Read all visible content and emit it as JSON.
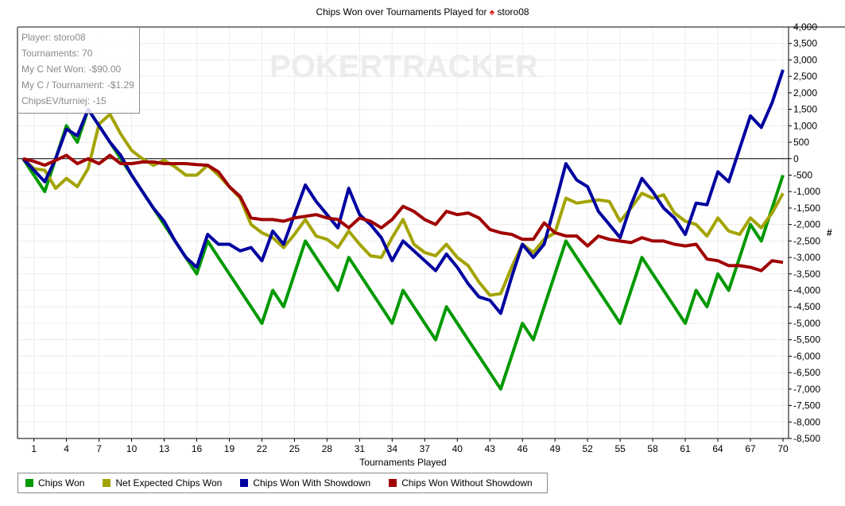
{
  "title": {
    "prefix": "Chips Won over Tournaments Played for",
    "player": "storo08",
    "icon": "spade-icon"
  },
  "watermark": "POKERTRACKER",
  "info_box": {
    "lines": [
      "Player: storo08",
      "Tournaments: 70",
      "My C Net Won: -$90.00",
      "My C / Tournament: -$1.29",
      "ChipsEV/turniej: -15"
    ]
  },
  "chart_data": {
    "type": "line",
    "title": "Chips Won over Tournaments Played for storo08",
    "xlabel": "Tournaments Played",
    "ylabel": "#",
    "xlim": [
      0,
      70
    ],
    "ylim": [
      -8500,
      4000
    ],
    "x_ticks": [
      1,
      4,
      7,
      10,
      13,
      16,
      19,
      22,
      25,
      28,
      31,
      34,
      37,
      40,
      43,
      46,
      49,
      52,
      55,
      58,
      61,
      64,
      67,
      70
    ],
    "y_ticks": [
      4000,
      3500,
      3000,
      2500,
      2000,
      1500,
      1000,
      500,
      0,
      -500,
      -1000,
      -1500,
      -2000,
      -2500,
      -3000,
      -3500,
      -4000,
      -4500,
      -5000,
      -5500,
      -6000,
      -6500,
      -7000,
      -7500,
      -8000,
      -8500
    ],
    "y_tick_labels": [
      "4,000",
      "3,500",
      "3,000",
      "2,500",
      "2,000",
      "1,500",
      "1,000",
      "500",
      "0",
      "-500",
      "-1,000",
      "-1,500",
      "-2,000",
      "-2,500",
      "-3,000",
      "-3,500",
      "-4,000",
      "-4,500",
      "-5,000",
      "-5,500",
      "-6,000",
      "-6,500",
      "-7,000",
      "-7,500",
      "-8,000",
      "-8,500"
    ],
    "grid": true,
    "legend_position": "bottom-left",
    "series": [
      {
        "name": "Chips Won",
        "color": "#009900",
        "values": [
          0,
          -500,
          -1000,
          0,
          1000,
          500,
          1500,
          1000,
          500,
          0,
          -500,
          -1000,
          -1500,
          -2000,
          -2500,
          -3000,
          -3500,
          -2500,
          -3000,
          -3500,
          -4000,
          -4500,
          -5000,
          -4000,
          -4500,
          -3500,
          -2500,
          -3000,
          -3500,
          -4000,
          -3000,
          -3500,
          -4000,
          -4500,
          -5000,
          -4000,
          -4500,
          -5000,
          -5500,
          -4500,
          -5000,
          -5500,
          -6000,
          -6500,
          -7000,
          -6000,
          -5000,
          -5500,
          -4500,
          -3500,
          -2500,
          -3000,
          -3500,
          -4000,
          -4500,
          -5000,
          -4000,
          -3000,
          -3500,
          -4000,
          -4500,
          -5000,
          -4000,
          -4500,
          -3500,
          -4000,
          -3000,
          -2000,
          -2500,
          -1500,
          -500
        ]
      },
      {
        "name": "Net Expected Chips Won",
        "color": "#a3a300",
        "values": [
          0,
          -300,
          -350,
          -900,
          -600,
          -850,
          -300,
          1050,
          1350,
          750,
          250,
          0,
          -200,
          -50,
          -250,
          -500,
          -500,
          -200,
          -500,
          -850,
          -1200,
          -2000,
          -2250,
          -2400,
          -2700,
          -2300,
          -1850,
          -2350,
          -2450,
          -2700,
          -2200,
          -2600,
          -2950,
          -3000,
          -2400,
          -1850,
          -2600,
          -2850,
          -2950,
          -2600,
          -3000,
          -3250,
          -3750,
          -4150,
          -4100,
          -3300,
          -2600,
          -2850,
          -2450,
          -2250,
          -1200,
          -1350,
          -1300,
          -1250,
          -1300,
          -1900,
          -1500,
          -1050,
          -1200,
          -1100,
          -1650,
          -1900,
          -2000,
          -2350,
          -1800,
          -2200,
          -2300,
          -1800,
          -2100,
          -1650,
          -1050
        ]
      },
      {
        "name": "Chips Won With Showdown",
        "color": "#0000a0",
        "values": [
          0,
          -350,
          -700,
          0,
          900,
          700,
          1500,
          1000,
          500,
          100,
          -500,
          -1000,
          -1500,
          -1900,
          -2500,
          -3000,
          -3300,
          -2300,
          -2600,
          -2600,
          -2800,
          -2700,
          -3100,
          -2200,
          -2600,
          -1700,
          -800,
          -1300,
          -1700,
          -2100,
          -900,
          -1700,
          -2000,
          -2400,
          -3100,
          -2500,
          -2800,
          -3100,
          -3400,
          -2900,
          -3300,
          -3800,
          -4200,
          -4300,
          -4700,
          -3600,
          -2600,
          -3000,
          -2600,
          -1400,
          -150,
          -650,
          -850,
          -1600,
          -2000,
          -2400,
          -1400,
          -600,
          -1000,
          -1500,
          -1800,
          -2300,
          -1350,
          -1400,
          -400,
          -700,
          300,
          1300,
          950,
          1700,
          2700
        ]
      },
      {
        "name": "Chips Won Without Showdown",
        "color": "#a00000",
        "values": [
          0,
          -80,
          -200,
          -50,
          100,
          -150,
          0,
          -150,
          100,
          -150,
          -150,
          -100,
          -100,
          -150,
          -150,
          -150,
          -180,
          -200,
          -400,
          -850,
          -1150,
          -1800,
          -1850,
          -1850,
          -1900,
          -1800,
          -1750,
          -1700,
          -1800,
          -1850,
          -2100,
          -1800,
          -1900,
          -2100,
          -1850,
          -1450,
          -1600,
          -1850,
          -2000,
          -1600,
          -1700,
          -1650,
          -1800,
          -2150,
          -2250,
          -2300,
          -2450,
          -2450,
          -1950,
          -2250,
          -2350,
          -2350,
          -2650,
          -2350,
          -2450,
          -2500,
          -2550,
          -2400,
          -2500,
          -2500,
          -2600,
          -2650,
          -2600,
          -3050,
          -3100,
          -3250,
          -3250,
          -3300,
          -3400,
          -3100,
          -3150
        ]
      }
    ]
  }
}
